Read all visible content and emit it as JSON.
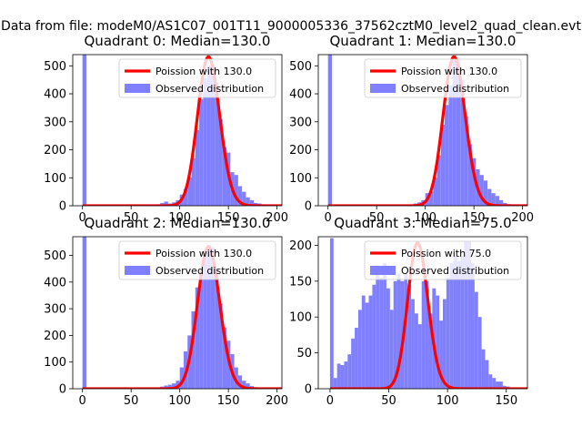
{
  "figure": {
    "suptitle": "Data from file: modeM0/AS1C07_001T11_9000005336_37562cztM0_level2_quad_clean.evt"
  },
  "chart_data": [
    {
      "type": "bar",
      "title": "Quadrant 0: Median=130.0",
      "xlim": [
        -10,
        205
      ],
      "ylim": [
        0,
        540
      ],
      "xticks": [
        0,
        50,
        100,
        150,
        200
      ],
      "yticks": [
        0,
        100,
        200,
        300,
        400,
        500
      ],
      "legend": [
        "Poission with 130.0",
        "Observed distribution"
      ],
      "legend_placement": "upper-right",
      "poisson_mean": 130.0,
      "hist": {
        "bin_width": 4,
        "bins": [
          [
            0,
            545
          ],
          [
            68,
            2
          ],
          [
            72,
            3
          ],
          [
            76,
            5
          ],
          [
            80,
            10
          ],
          [
            84,
            15
          ],
          [
            88,
            8
          ],
          [
            92,
            12
          ],
          [
            96,
            20
          ],
          [
            100,
            40
          ],
          [
            104,
            60
          ],
          [
            108,
            100
          ],
          [
            112,
            170
          ],
          [
            116,
            270
          ],
          [
            120,
            380
          ],
          [
            124,
            455
          ],
          [
            128,
            500
          ],
          [
            132,
            500
          ],
          [
            136,
            440
          ],
          [
            140,
            310
          ],
          [
            144,
            210
          ],
          [
            148,
            190
          ],
          [
            152,
            120
          ],
          [
            156,
            110
          ],
          [
            160,
            70
          ],
          [
            164,
            50
          ],
          [
            168,
            30
          ],
          [
            172,
            20
          ],
          [
            176,
            10
          ],
          [
            180,
            8
          ],
          [
            184,
            5
          ],
          [
            188,
            3
          ]
        ]
      }
    },
    {
      "type": "bar",
      "title": "Quadrant 1: Median=130.0",
      "xlim": [
        -10,
        205
      ],
      "ylim": [
        0,
        540
      ],
      "xticks": [
        0,
        50,
        100,
        150,
        200
      ],
      "yticks": [
        0,
        100,
        200,
        300,
        400,
        500
      ],
      "legend": [
        "Poission with 130.0",
        "Observed distribution"
      ],
      "legend_placement": "upper-right",
      "poisson_mean": 130.0,
      "hist": {
        "bin_width": 4,
        "bins": [
          [
            0,
            545
          ],
          [
            80,
            3
          ],
          [
            84,
            5
          ],
          [
            88,
            8
          ],
          [
            92,
            12
          ],
          [
            96,
            20
          ],
          [
            100,
            45
          ],
          [
            104,
            50
          ],
          [
            108,
            100
          ],
          [
            112,
            180
          ],
          [
            116,
            290
          ],
          [
            120,
            360
          ],
          [
            124,
            430
          ],
          [
            128,
            520
          ],
          [
            132,
            520
          ],
          [
            136,
            450
          ],
          [
            140,
            320
          ],
          [
            144,
            220
          ],
          [
            148,
            170
          ],
          [
            152,
            130
          ],
          [
            156,
            110
          ],
          [
            160,
            90
          ],
          [
            164,
            60
          ],
          [
            168,
            45
          ],
          [
            172,
            35
          ],
          [
            176,
            20
          ],
          [
            180,
            10
          ],
          [
            184,
            6
          ],
          [
            188,
            3
          ],
          [
            192,
            2
          ]
        ]
      }
    },
    {
      "type": "bar",
      "title": "Quadrant 2: Median=130.0",
      "xlim": [
        -10,
        205
      ],
      "ylim": [
        0,
        570
      ],
      "xticks": [
        0,
        50,
        100,
        150,
        200
      ],
      "yticks": [
        0,
        100,
        200,
        300,
        400,
        500
      ],
      "legend": [
        "Poission with 130.0",
        "Observed distribution"
      ],
      "legend_placement": "upper-right",
      "poisson_mean": 130.0,
      "hist": {
        "bin_width": 4,
        "bins": [
          [
            0,
            570
          ],
          [
            68,
            3
          ],
          [
            72,
            4
          ],
          [
            76,
            5
          ],
          [
            80,
            8
          ],
          [
            84,
            12
          ],
          [
            88,
            15
          ],
          [
            92,
            20
          ],
          [
            96,
            30
          ],
          [
            100,
            80
          ],
          [
            104,
            140
          ],
          [
            108,
            200
          ],
          [
            112,
            290
          ],
          [
            116,
            380
          ],
          [
            120,
            440
          ],
          [
            124,
            520
          ],
          [
            128,
            540
          ],
          [
            132,
            530
          ],
          [
            136,
            450
          ],
          [
            140,
            320
          ],
          [
            144,
            230
          ],
          [
            148,
            180
          ],
          [
            152,
            130
          ],
          [
            156,
            80
          ],
          [
            160,
            50
          ],
          [
            164,
            30
          ],
          [
            168,
            20
          ],
          [
            172,
            10
          ],
          [
            176,
            6
          ],
          [
            180,
            4
          ],
          [
            184,
            2
          ]
        ]
      }
    },
    {
      "type": "bar",
      "title": "Quadrant 3: Median=75.0",
      "xlim": [
        -10,
        168
      ],
      "ylim": [
        0,
        212
      ],
      "xticks": [
        0,
        50,
        100,
        150
      ],
      "yticks": [
        0,
        50,
        100,
        150,
        200
      ],
      "legend": [
        "Poission with 75.0",
        "Observed distribution"
      ],
      "legend_placement": "upper-right",
      "poisson_mean": 75.0,
      "hist": {
        "bin_width": 3,
        "bins": [
          [
            0,
            210
          ],
          [
            3,
            15
          ],
          [
            6,
            35
          ],
          [
            9,
            33
          ],
          [
            12,
            38
          ],
          [
            15,
            48
          ],
          [
            18,
            70
          ],
          [
            21,
            85
          ],
          [
            24,
            110
          ],
          [
            27,
            130
          ],
          [
            30,
            120
          ],
          [
            33,
            130
          ],
          [
            36,
            145
          ],
          [
            39,
            165
          ],
          [
            42,
            155
          ],
          [
            45,
            175
          ],
          [
            48,
            140
          ],
          [
            51,
            110
          ],
          [
            54,
            150
          ],
          [
            57,
            160
          ],
          [
            60,
            150
          ],
          [
            63,
            160
          ],
          [
            66,
            145
          ],
          [
            69,
            125
          ],
          [
            72,
            105
          ],
          [
            75,
            90
          ],
          [
            78,
            150
          ],
          [
            81,
            150
          ],
          [
            84,
            105
          ],
          [
            87,
            140
          ],
          [
            90,
            130
          ],
          [
            93,
            95
          ],
          [
            96,
            125
          ],
          [
            99,
            155
          ],
          [
            102,
            175
          ],
          [
            105,
            185
          ],
          [
            108,
            178
          ],
          [
            111,
            185
          ],
          [
            114,
            205
          ],
          [
            117,
            205
          ],
          [
            120,
            175
          ],
          [
            123,
            135
          ],
          [
            126,
            100
          ],
          [
            129,
            55
          ],
          [
            132,
            40
          ],
          [
            135,
            20
          ],
          [
            138,
            15
          ],
          [
            141,
            10
          ],
          [
            144,
            10
          ],
          [
            147,
            4
          ],
          [
            150,
            3
          ],
          [
            153,
            1
          ]
        ]
      }
    }
  ]
}
